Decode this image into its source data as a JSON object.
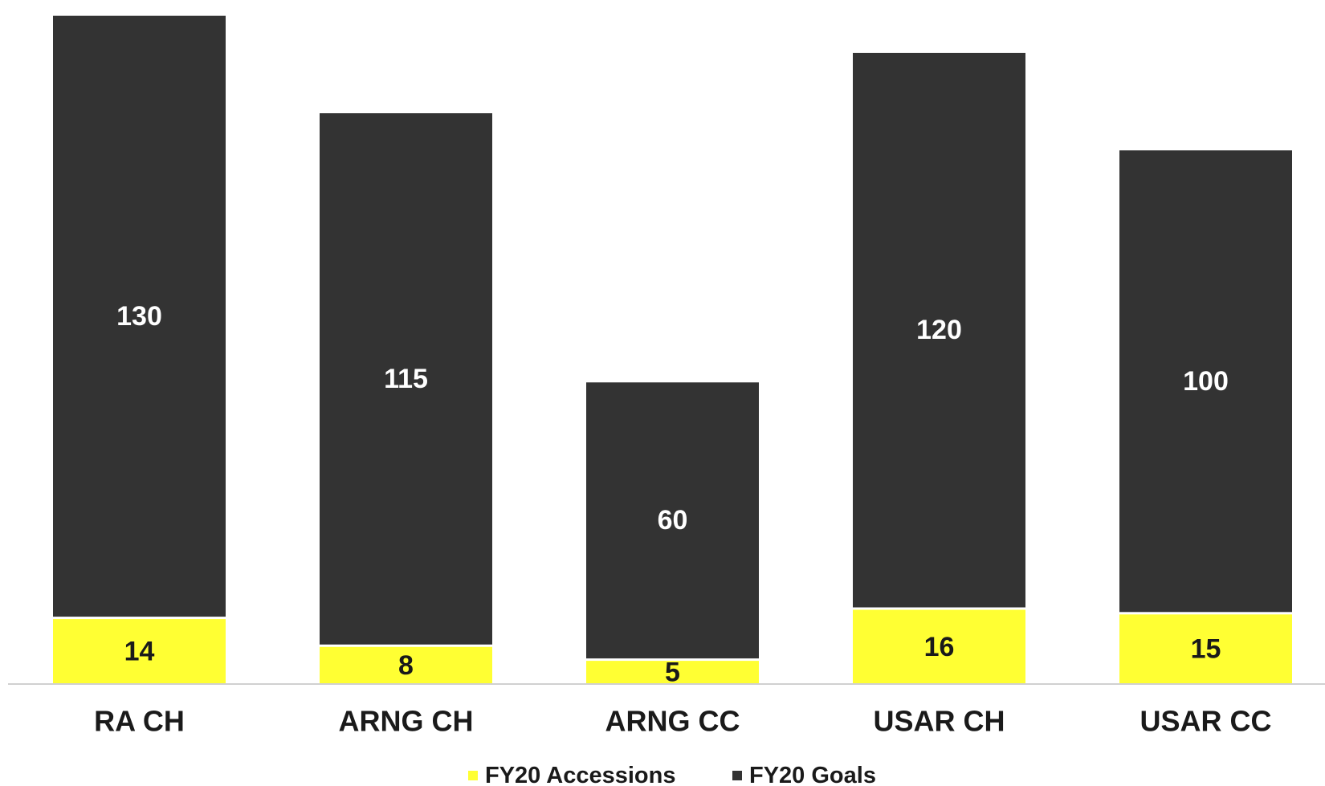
{
  "chart_data": {
    "type": "bar",
    "stacked": true,
    "categories": [
      "RA CH",
      "ARNG CH",
      "ARNG CC",
      "USAR CH",
      "USAR CC"
    ],
    "series": [
      {
        "name": "FY20 Accessions",
        "color": "#ffff33",
        "label_color": "#1a1a1a",
        "values": [
          14,
          8,
          5,
          16,
          15
        ]
      },
      {
        "name": "FY20 Goals",
        "color": "#333333",
        "label_color": "#ffffff",
        "values": [
          130,
          115,
          60,
          120,
          100
        ]
      }
    ],
    "ylim": [
      0,
      145
    ],
    "legend": "bottom",
    "grid": false,
    "title": "",
    "xlabel": "",
    "ylabel": ""
  }
}
